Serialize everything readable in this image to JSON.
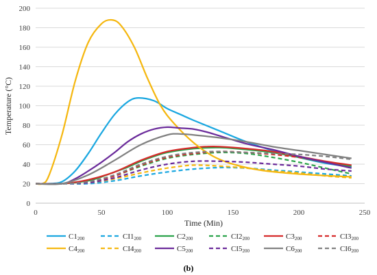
{
  "caption": "(b)",
  "chart_data": {
    "type": "line",
    "xlabel": "Time (Min)",
    "ylabel": "Temperature (°C)",
    "xlim": [
      0,
      250
    ],
    "ylim": [
      0,
      200
    ],
    "xticks": [
      "0",
      "50",
      "100",
      "150",
      "200",
      "250"
    ],
    "yticks": [
      "0",
      "20",
      "40",
      "60",
      "80",
      "100",
      "120",
      "140",
      "160",
      "180",
      "200"
    ],
    "grid": "horizontal",
    "legend_position": "bottom",
    "series": [
      {
        "name": "C1",
        "sub": "200",
        "color": "#1aa7e0",
        "dash": "solid",
        "x": [
          0,
          10,
          20,
          30,
          40,
          50,
          60,
          70,
          78,
          90,
          100,
          110,
          120,
          140,
          160,
          180,
          200,
          220,
          240
        ],
        "y": [
          20,
          20,
          22,
          33,
          51,
          72,
          91,
          104,
          108,
          105,
          97,
          91,
          85,
          74,
          63,
          54,
          47,
          41,
          37
        ]
      },
      {
        "name": "CI1",
        "sub": "200",
        "color": "#1aa7e0",
        "dash": "dashed",
        "x": [
          0,
          20,
          40,
          60,
          80,
          100,
          120,
          140,
          160,
          180,
          200,
          220,
          240
        ],
        "y": [
          20,
          20,
          20,
          23,
          28,
          32,
          35,
          36.5,
          36,
          34,
          32,
          30,
          28
        ]
      },
      {
        "name": "C2",
        "sub": "200",
        "color": "#2aa24a",
        "dash": "solid",
        "x": [
          0,
          20,
          40,
          50,
          60,
          70,
          80,
          90,
          100,
          120,
          140,
          160,
          180,
          200,
          220,
          240
        ],
        "y": [
          20,
          20,
          23,
          27,
          32,
          37,
          43,
          48,
          52,
          56,
          57,
          55,
          52,
          47,
          42,
          38
        ]
      },
      {
        "name": "CI2",
        "sub": "200",
        "color": "#2aa24a",
        "dash": "dashed",
        "x": [
          0,
          20,
          40,
          60,
          80,
          100,
          120,
          140,
          160,
          180,
          200,
          220,
          240
        ],
        "y": [
          20,
          20,
          22,
          28,
          38,
          46,
          50,
          52,
          51,
          47,
          42,
          36,
          30
        ]
      },
      {
        "name": "C3",
        "sub": "200",
        "color": "#d62a2a",
        "dash": "solid",
        "x": [
          0,
          20,
          40,
          60,
          80,
          100,
          120,
          130,
          140,
          160,
          180,
          200,
          220,
          240
        ],
        "y": [
          20,
          20,
          24,
          32,
          44,
          53,
          57,
          58,
          58,
          56,
          53,
          48,
          43,
          39
        ]
      },
      {
        "name": "CI3",
        "sub": "200",
        "color": "#d62a2a",
        "dash": "dashed",
        "x": [
          0,
          20,
          40,
          60,
          80,
          100,
          120,
          140,
          160,
          180,
          200,
          220,
          240
        ],
        "y": [
          20,
          20,
          22,
          28,
          39,
          47,
          51,
          53,
          52,
          50,
          47,
          42,
          36
        ]
      },
      {
        "name": "C4",
        "sub": "200",
        "color": "#f5b70f",
        "dash": "solid",
        "x": [
          0,
          5,
          10,
          20,
          30,
          40,
          50,
          58,
          65,
          75,
          85,
          95,
          105,
          120,
          135,
          150,
          170,
          190,
          210,
          240
        ],
        "y": [
          20,
          20,
          28,
          70,
          125,
          165,
          184,
          188,
          182,
          160,
          128,
          100,
          82,
          62,
          48,
          40,
          34,
          31,
          29,
          27
        ]
      },
      {
        "name": "CI4",
        "sub": "200",
        "color": "#f5b70f",
        "dash": "dashed",
        "x": [
          0,
          20,
          40,
          60,
          80,
          100,
          120,
          140,
          160,
          180,
          200,
          220,
          240
        ],
        "y": [
          20,
          20,
          21,
          25,
          31,
          36,
          39,
          38,
          36,
          33,
          31,
          28,
          26
        ]
      },
      {
        "name": "C5",
        "sub": "200",
        "color": "#6a2a9a",
        "dash": "solid",
        "x": [
          0,
          20,
          30,
          40,
          50,
          60,
          70,
          80,
          90,
          100,
          110,
          120,
          130,
          140,
          160,
          180,
          200,
          220,
          240
        ],
        "y": [
          20,
          20,
          25,
          33,
          42,
          52,
          63,
          71,
          76,
          78,
          77,
          76,
          73,
          69,
          61,
          55,
          48,
          42,
          36
        ]
      },
      {
        "name": "CI5",
        "sub": "200",
        "color": "#6a2a9a",
        "dash": "dashed",
        "x": [
          0,
          20,
          40,
          60,
          80,
          100,
          120,
          140,
          160,
          180,
          200,
          220,
          240
        ],
        "y": [
          20,
          20,
          21,
          26,
          34,
          40,
          43,
          43,
          42,
          40,
          38,
          35,
          33
        ]
      },
      {
        "name": "C6",
        "sub": "200",
        "color": "#808080",
        "dash": "solid",
        "x": [
          0,
          20,
          40,
          60,
          80,
          100,
          110,
          120,
          140,
          160,
          180,
          200,
          220,
          240
        ],
        "y": [
          20,
          20,
          29,
          44,
          60,
          70,
          71,
          70,
          67,
          63,
          58,
          54,
          50,
          46
        ]
      },
      {
        "name": "CI6",
        "sub": "200",
        "color": "#808080",
        "dash": "dashed",
        "x": [
          0,
          20,
          40,
          60,
          80,
          100,
          120,
          140,
          160,
          180,
          200,
          220,
          240
        ],
        "y": [
          20,
          20,
          22,
          29,
          40,
          48,
          52,
          53,
          52,
          51,
          50,
          48,
          45
        ]
      }
    ]
  }
}
